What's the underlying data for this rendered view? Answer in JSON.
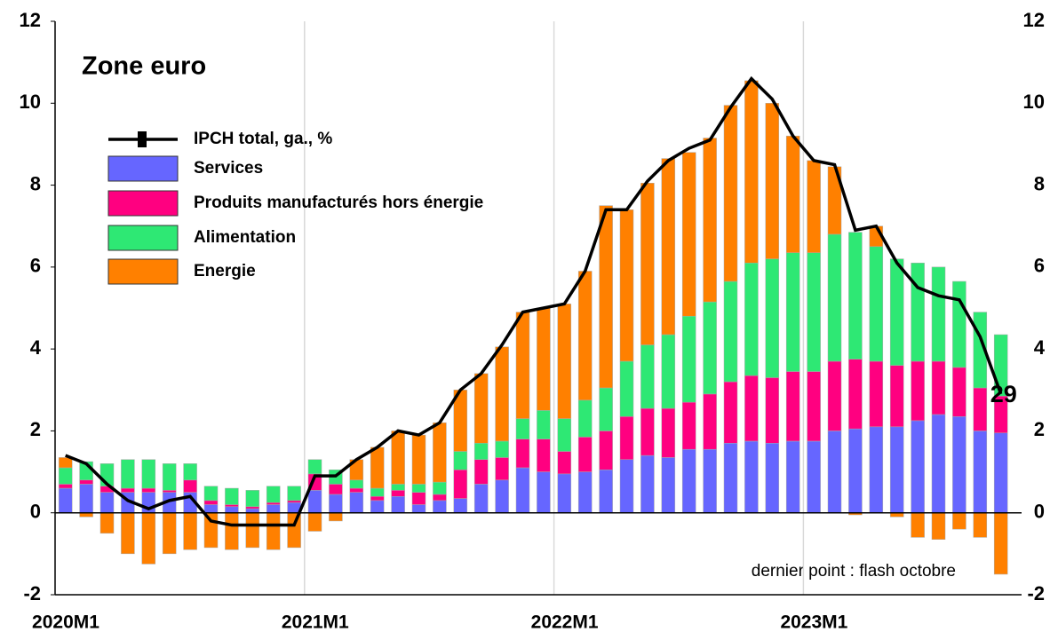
{
  "chart_data": {
    "type": "bar",
    "title": "Zone euro",
    "annotations": [
      "dernier point : flash octobre",
      "29"
    ],
    "categories": [
      "2020M1",
      null,
      null,
      null,
      null,
      null,
      null,
      null,
      null,
      null,
      null,
      null,
      "2021M1",
      null,
      null,
      null,
      null,
      null,
      null,
      null,
      null,
      null,
      null,
      null,
      "2022M1",
      null,
      null,
      null,
      null,
      null,
      null,
      null,
      null,
      null,
      null,
      null,
      "2023M1",
      null,
      null,
      null,
      null,
      null,
      null,
      null,
      null,
      null
    ],
    "series": [
      {
        "name": "Services",
        "color": "#6666ff",
        "values": [
          0.6,
          0.7,
          0.5,
          0.5,
          0.5,
          0.5,
          0.5,
          0.2,
          0.15,
          0.1,
          0.2,
          0.25,
          0.55,
          0.45,
          0.5,
          0.3,
          0.4,
          0.2,
          0.3,
          0.35,
          0.7,
          0.8,
          1.1,
          1.0,
          0.95,
          1.0,
          1.05,
          1.3,
          1.4,
          1.35,
          1.55,
          1.55,
          1.7,
          1.75,
          1.7,
          1.75,
          1.75,
          2.0,
          2.05,
          2.1,
          2.1,
          2.25,
          2.4,
          2.35,
          2.0,
          1.95
        ]
      },
      {
        "name": "Produits manufacturés hors énergie",
        "color": "#ff0080",
        "values": [
          0.1,
          0.1,
          0.15,
          0.1,
          0.1,
          0.05,
          0.3,
          0.1,
          0.05,
          0.05,
          0.05,
          0.05,
          0.4,
          0.25,
          0.1,
          0.1,
          0.15,
          0.3,
          0.15,
          0.7,
          0.6,
          0.55,
          0.7,
          0.8,
          0.55,
          0.85,
          0.95,
          1.05,
          1.15,
          1.2,
          1.15,
          1.35,
          1.5,
          1.6,
          1.6,
          1.7,
          1.7,
          1.7,
          1.7,
          1.6,
          1.5,
          1.45,
          1.3,
          1.2,
          1.05,
          0.9
        ]
      },
      {
        "name": "Alimentation",
        "color": "#2ee874",
        "values": [
          0.4,
          0.45,
          0.55,
          0.7,
          0.7,
          0.65,
          0.4,
          0.35,
          0.4,
          0.4,
          0.4,
          0.35,
          0.35,
          0.35,
          0.2,
          0.2,
          0.15,
          0.2,
          0.3,
          0.45,
          0.4,
          0.4,
          0.5,
          0.7,
          0.8,
          0.9,
          1.05,
          1.35,
          1.55,
          1.8,
          2.1,
          2.25,
          2.45,
          2.75,
          2.9,
          2.9,
          2.9,
          3.1,
          3.1,
          2.8,
          2.6,
          2.4,
          2.3,
          2.1,
          1.85,
          1.5
        ]
      },
      {
        "name": "Energie",
        "color": "#ff8000",
        "values": [
          0.25,
          -0.1,
          -0.5,
          -1.0,
          -1.25,
          -1.0,
          -0.9,
          -0.85,
          -0.9,
          -0.85,
          -0.9,
          -0.85,
          -0.45,
          -0.2,
          0.5,
          1.0,
          1.3,
          1.2,
          1.45,
          1.5,
          1.7,
          2.3,
          2.6,
          2.5,
          2.8,
          3.15,
          4.45,
          3.7,
          3.95,
          4.3,
          4.0,
          4.0,
          4.3,
          4.45,
          3.8,
          2.85,
          2.25,
          1.65,
          -0.05,
          0.5,
          -0.1,
          -0.6,
          -0.65,
          -0.4,
          -0.6,
          -1.5
        ]
      },
      {
        "name": "IPCH total, ga., %",
        "color": "#000000",
        "type": "line",
        "values": [
          1.4,
          1.2,
          0.7,
          0.3,
          0.1,
          0.3,
          0.4,
          -0.2,
          -0.3,
          -0.3,
          -0.3,
          -0.3,
          0.9,
          0.9,
          1.3,
          1.6,
          2.0,
          1.9,
          2.2,
          3.0,
          3.4,
          4.1,
          4.9,
          5.0,
          5.1,
          5.9,
          7.4,
          7.4,
          8.1,
          8.6,
          8.9,
          9.1,
          9.9,
          10.6,
          10.1,
          9.2,
          8.6,
          8.5,
          6.9,
          7.0,
          6.1,
          5.5,
          5.3,
          5.2,
          4.3,
          2.9
        ]
      }
    ],
    "ylim": [
      -2,
      12
    ],
    "yticks": [
      -2,
      0,
      2,
      4,
      6,
      8,
      10,
      12
    ],
    "y2lim": [
      -2,
      12
    ],
    "y2ticks": [
      -2,
      0,
      2,
      4,
      6,
      8,
      10,
      12
    ],
    "grid": true,
    "legend": "upper left"
  }
}
